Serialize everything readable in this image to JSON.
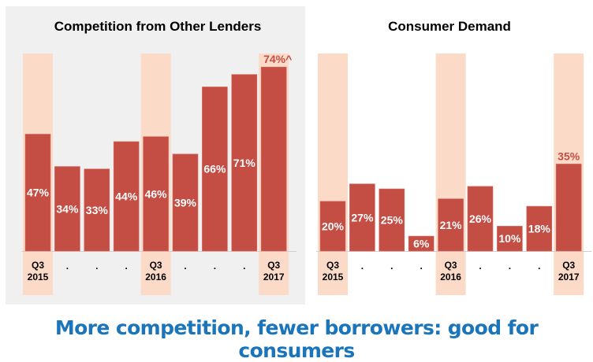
{
  "chart_data": [
    {
      "type": "bar",
      "title": "Competition from Other Lenders",
      "categories": [
        "Q3 2015",
        ".",
        ".",
        ".",
        "Q3 2016",
        ".",
        ".",
        ".",
        "Q3 2017"
      ],
      "values": [
        47,
        34,
        33,
        44,
        46,
        39,
        66,
        71,
        74
      ],
      "data_labels": [
        "47%",
        "34%",
        "33%",
        "44%",
        "46%",
        "39%",
        "66%",
        "71%",
        "74%^"
      ],
      "highlighted_categories": [
        0,
        4,
        8
      ],
      "ylim": [
        0,
        80
      ],
      "grid": false,
      "background": "#f0f0f0"
    },
    {
      "type": "bar",
      "title": "Consumer Demand",
      "categories": [
        "Q3 2015",
        ".",
        ".",
        ".",
        "Q3 2016",
        ".",
        ".",
        ".",
        "Q3 2017"
      ],
      "values": [
        20,
        27,
        25,
        6,
        21,
        26,
        10,
        18,
        35
      ],
      "data_labels": [
        "20%",
        "27%",
        "25%",
        "6%",
        "21%",
        "26%",
        "10%",
        "18%",
        "35%"
      ],
      "highlighted_categories": [
        0,
        4,
        8
      ],
      "ylim": [
        0,
        80
      ],
      "grid": false,
      "background": "#ffffff"
    }
  ],
  "caption": "More competition, fewer borrowers: good for consumers",
  "colors": {
    "bar": "#c44e44",
    "highlight": "#fbdac8",
    "caption": "#1b75bb",
    "outside_label": "#c44e44"
  }
}
